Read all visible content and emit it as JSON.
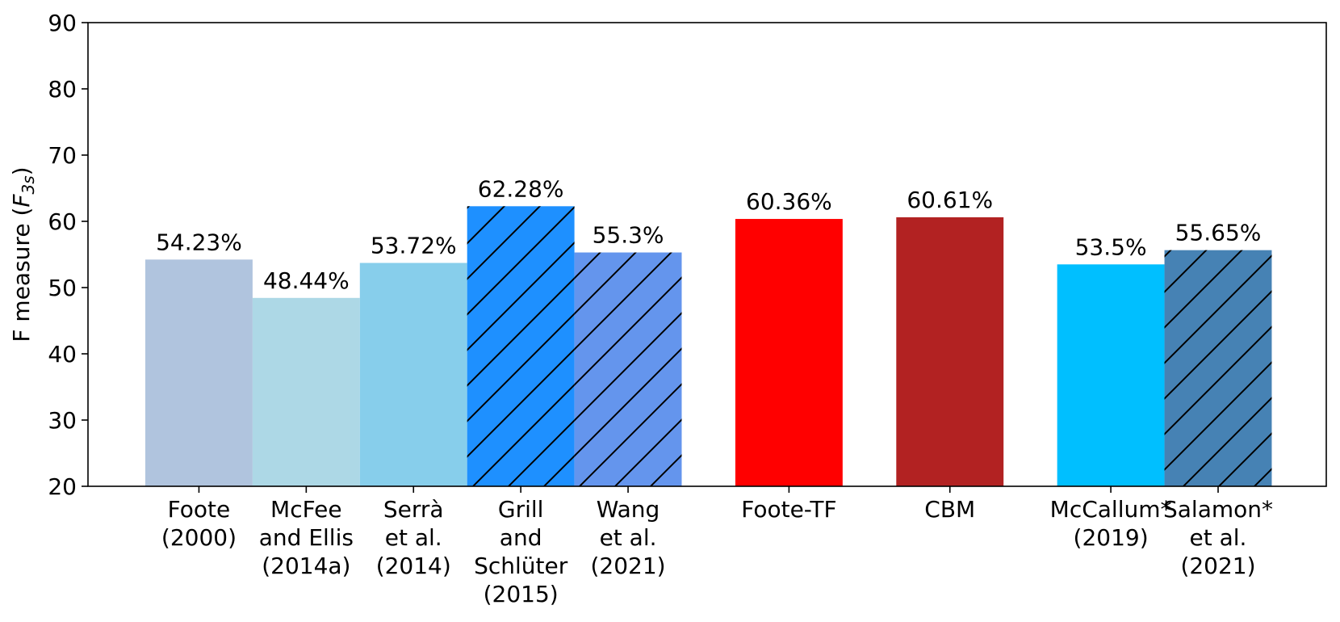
{
  "chart_data": {
    "type": "bar",
    "ylabel": [
      "F measure (",
      "F",
      "3s",
      ")"
    ],
    "categories": [
      "Foote\n(2000)",
      "McFee\nand Ellis\n(2014a)",
      "Serrà\net al.\n(2014)",
      "Grill\nand\nSchlüter\n(2015)",
      "Wang\net al.\n(2021)",
      "Foote-TF",
      "CBM",
      "McCallum*\n(2019)",
      "Salamon*\net al.\n(2021)"
    ],
    "values": [
      54.23,
      48.44,
      53.72,
      62.28,
      55.3,
      60.36,
      60.61,
      53.5,
      55.65
    ],
    "value_labels": [
      "54.23%",
      "48.44%",
      "53.72%",
      "62.28%",
      "55.3%",
      "60.36%",
      "60.61%",
      "53.5%",
      "55.65%"
    ],
    "colors": [
      "#b0c4de",
      "#add8e6",
      "#87ceeb",
      "#1e90ff",
      "#6495ed",
      "#ff0000",
      "#b22222",
      "#00bfff",
      "#4682b4"
    ],
    "hatch": [
      false,
      false,
      false,
      true,
      true,
      false,
      false,
      false,
      true
    ],
    "ylim": [
      20,
      90
    ],
    "yticks": [
      20,
      30,
      40,
      50,
      60,
      70,
      80,
      90
    ]
  }
}
